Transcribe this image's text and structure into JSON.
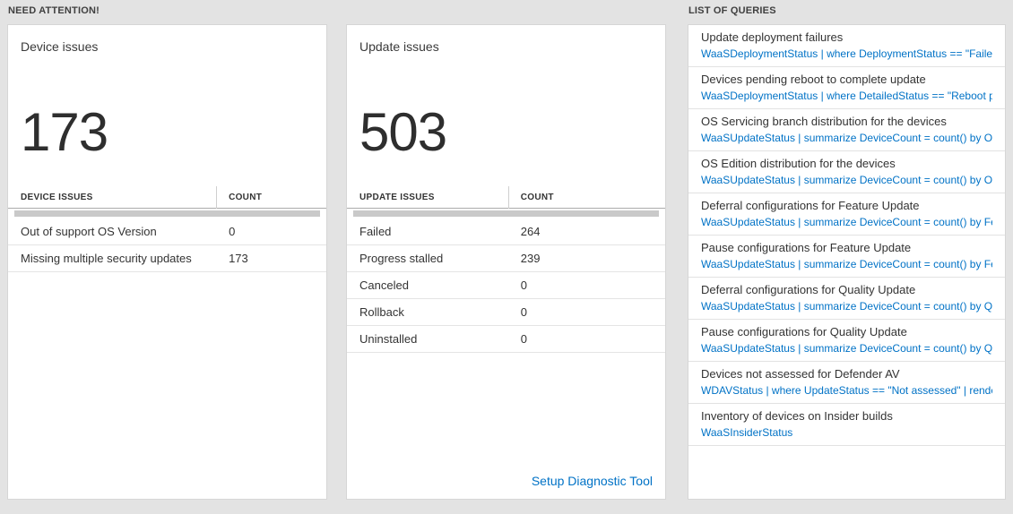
{
  "need_attention": {
    "title": "NEED ATTENTION!",
    "device_card": {
      "title": "Device issues",
      "count": "173",
      "table": {
        "headers": [
          "DEVICE ISSUES",
          "COUNT"
        ],
        "rows": [
          {
            "label": "Out of support OS Version",
            "count": "0"
          },
          {
            "label": "Missing multiple security updates",
            "count": "173"
          }
        ]
      }
    },
    "update_card": {
      "title": "Update issues",
      "count": "503",
      "table": {
        "headers": [
          "UPDATE ISSUES",
          "COUNT"
        ],
        "rows": [
          {
            "label": "Failed",
            "count": "264"
          },
          {
            "label": "Progress stalled",
            "count": "239"
          },
          {
            "label": "Canceled",
            "count": "0"
          },
          {
            "label": "Rollback",
            "count": "0"
          },
          {
            "label": "Uninstalled",
            "count": "0"
          }
        ]
      },
      "footer_link": "Setup Diagnostic Tool"
    }
  },
  "queries": {
    "title": "LIST OF QUERIES",
    "items": [
      {
        "title": "Update deployment failures",
        "query": "WaaSDeploymentStatus | where DeploymentStatus == \"Failed\" |..."
      },
      {
        "title": "Devices pending reboot to complete update",
        "query": "WaaSDeploymentStatus | where DetailedStatus == \"Reboot pend..."
      },
      {
        "title": "OS Servicing branch distribution for the devices",
        "query": "WaaSUpdateStatus | summarize DeviceCount = count() by OSSer..."
      },
      {
        "title": "OS Edition distribution for the devices",
        "query": "WaaSUpdateStatus | summarize DeviceCount = count() by OSEdit..."
      },
      {
        "title": "Deferral configurations for Feature Update",
        "query": "WaaSUpdateStatus | summarize DeviceCount = count() by Featur..."
      },
      {
        "title": "Pause configurations for Feature Update",
        "query": "WaaSUpdateStatus | summarize DeviceCount = count() by Featur..."
      },
      {
        "title": "Deferral configurations for Quality Update",
        "query": "WaaSUpdateStatus | summarize DeviceCount = count() by Qualit..."
      },
      {
        "title": "Pause configurations for Quality Update",
        "query": "WaaSUpdateStatus | summarize DeviceCount = count() by Qualit..."
      },
      {
        "title": "Devices not assessed for Defender AV",
        "query": "WDAVStatus | where UpdateStatus == \"Not assessed\" | render ta..."
      },
      {
        "title": "Inventory of devices on Insider builds",
        "query": "WaaSInsiderStatus"
      }
    ]
  }
}
